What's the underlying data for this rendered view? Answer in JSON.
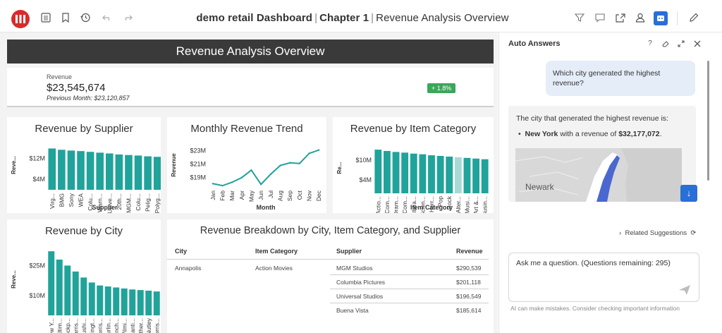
{
  "app": {
    "title_app": "demo retail Dashboard",
    "title_chapter": "Chapter 1",
    "title_page": "Revenue Analysis Overview",
    "separator": "|"
  },
  "toolbar_icons": [
    "table-of-contents-icon",
    "bookmark-icon",
    "history-icon",
    "undo-icon",
    "redo-icon",
    "filter-icon",
    "comment-icon",
    "share-icon",
    "user-icon",
    "ai-assistant-icon",
    "edit-icon"
  ],
  "colors": {
    "accent": "#20a39a",
    "brand": "#d92b2b",
    "primary_blue": "#2a6ed8",
    "badge_green": "#3ca65a"
  },
  "dashboard": {
    "banner": "Revenue Analysis Overview",
    "kpi": {
      "label": "Revenue",
      "value": "$23,545,674",
      "previous": "Previous Month: $23,120,857",
      "delta": "+ 1.8%"
    }
  },
  "chart_data": [
    {
      "type": "bar",
      "title": "Revenue by Supplier",
      "xlabel": "Supplier",
      "ylabel": "Reve...",
      "yticks": [
        "$4M",
        "$12M"
      ],
      "ytick_values": [
        4000000,
        12000000
      ],
      "categories": [
        "Virg...",
        "BMG",
        "Sony",
        "WEA",
        "Colu...",
        "Warn...",
        "Unive...",
        "20th...",
        "MGM...",
        "Colu...",
        "Pelig...",
        "Polyg..."
      ],
      "values": [
        15800000,
        15300000,
        15000000,
        14800000,
        14500000,
        14200000,
        13900000,
        13500000,
        13300000,
        13100000,
        12800000,
        12600000
      ],
      "ylim": [
        0,
        17000000
      ]
    },
    {
      "type": "line",
      "title": "Monthly Revenue Trend",
      "xlabel": "Month",
      "ylabel": "Revenue",
      "yticks": [
        "$19M",
        "$21M",
        "$23M"
      ],
      "ytick_values": [
        19000000,
        21000000,
        23000000
      ],
      "categories": [
        "Jan",
        "Feb",
        "Mar",
        "Apr",
        "May",
        "Jun",
        "Jul",
        "Aug",
        "Sep",
        "Oct",
        "Nov",
        "Dec"
      ],
      "values": [
        18100000,
        17800000,
        18300000,
        19000000,
        20100000,
        18000000,
        19500000,
        20800000,
        21200000,
        21100000,
        22600000,
        23100000
      ],
      "ylim": [
        17500000,
        23800000
      ]
    },
    {
      "type": "bar",
      "title": "Revenue by Item Category",
      "xlabel": "Item Category",
      "ylabel": "Re...",
      "yticks": [
        "$4M",
        "$10M"
      ],
      "ytick_values": [
        4000000,
        10000000
      ],
      "categories": [
        "Actio...",
        "Com...",
        "Dram...",
        "Com...",
        "Litera...",
        "Scien...",
        "Horr...",
        "Pop",
        "Rock",
        "Alter...",
        "Musi...",
        "Art &...",
        "Busin..."
      ],
      "values": [
        13200000,
        12800000,
        12500000,
        12300000,
        12000000,
        11800000,
        11500000,
        11300000,
        11100000,
        10900000,
        10700000,
        10500000,
        10300000
      ],
      "highlight_index": 9,
      "ylim": [
        0,
        14500000
      ]
    },
    {
      "type": "bar",
      "title": "Revenue by City",
      "xlabel": "",
      "ylabel": "Reve...",
      "yticks": [
        "$10M",
        "$25M"
      ],
      "ytick_values": [
        10000000,
        25000000
      ],
      "categories": [
        "New Y...",
        "Baltim...",
        "Lockp...",
        "Harris...",
        "Flushi...",
        "Arlingt...",
        "Morris...",
        "Burlin...",
        "Lynch...",
        "Wilmi...",
        "Chanti...",
        "Ruther...",
        "Nutley",
        "Morris..."
      ],
      "values": [
        32177072,
        28000000,
        25000000,
        22000000,
        19000000,
        16500000,
        15000000,
        14500000,
        14000000,
        13500000,
        13000000,
        12700000,
        12400000,
        12000000
      ],
      "ylim": [
        0,
        34000000
      ]
    }
  ],
  "table": {
    "title": "Revenue Breakdown by City, Item Category, and Supplier",
    "columns": [
      "City",
      "Item Category",
      "Supplier",
      "Revenue"
    ],
    "city": "Annapolis",
    "category": "Action Movies",
    "rows": [
      {
        "supplier": "MGM Studios",
        "revenue": "$290,539"
      },
      {
        "supplier": "Columbia Pictures",
        "revenue": "$201,118"
      },
      {
        "supplier": "Universal Studios",
        "revenue": "$196,549"
      },
      {
        "supplier": "Buena Vista",
        "revenue": "$185,614"
      }
    ]
  },
  "assistant": {
    "title": "Auto Answers",
    "help": "?",
    "question": "Which city generated the highest revenue?",
    "answer_intro": "The city that generated the highest revenue is:",
    "answer_city": "New York",
    "answer_mid": " with a revenue of ",
    "answer_value": "$32,177,072",
    "answer_end": ".",
    "map_label": "Newark",
    "related": "Related Suggestions",
    "input_placeholder": "Ask me a question. (Questions remaining: 295)",
    "disclaimer": "AI can make mistakes. Consider checking important information"
  }
}
